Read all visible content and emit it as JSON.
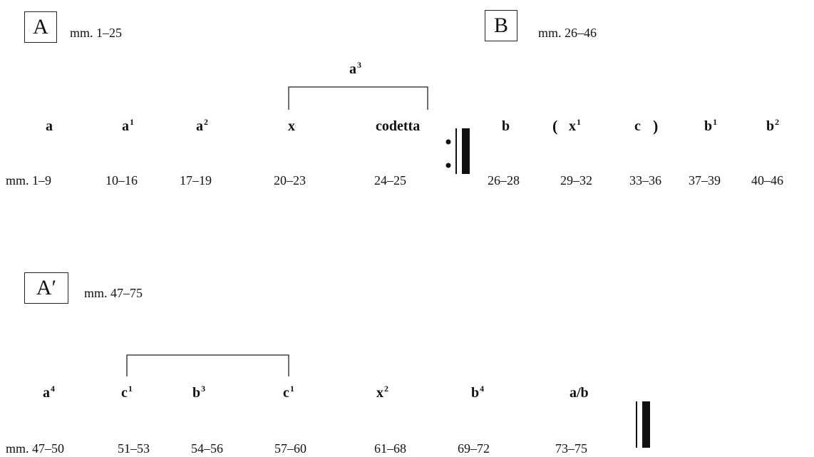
{
  "sectionA": {
    "letter": "A",
    "range": "mm. 1–25"
  },
  "sectionB": {
    "letter": "B",
    "range": "mm. 26–46"
  },
  "sectionA2": {
    "letter": "A′",
    "range": "mm. 47–75"
  },
  "row1": {
    "bracket_label": {
      "base": "a",
      "sup": "3"
    },
    "labels": [
      {
        "base": "a",
        "sup": ""
      },
      {
        "base": "a",
        "sup": "1"
      },
      {
        "base": "a",
        "sup": "2"
      },
      {
        "base": "x",
        "sup": ""
      },
      {
        "base": "codetta",
        "sup": ""
      },
      {
        "base": "b",
        "sup": ""
      },
      {
        "base": "x",
        "sup": "1"
      },
      {
        "base": "c",
        "sup": ""
      },
      {
        "base": "b",
        "sup": "1"
      },
      {
        "base": "b",
        "sup": "2"
      }
    ],
    "paren_open": "(",
    "paren_close": ")",
    "measures": [
      "mm. 1–9",
      "10–16",
      "17–19",
      "20–23",
      "24–25",
      "26–28",
      "29–32",
      "33–36",
      "37–39",
      "40–46"
    ]
  },
  "row2": {
    "labels": [
      {
        "base": "a",
        "sup": "4"
      },
      {
        "base": "c",
        "sup": "1"
      },
      {
        "base": "b",
        "sup": "3"
      },
      {
        "base": "c",
        "sup": "1"
      },
      {
        "base": "x",
        "sup": "2"
      },
      {
        "base": "b",
        "sup": "4"
      },
      {
        "base": "a/b",
        "sup": ""
      }
    ],
    "measures": [
      "mm. 47–50",
      "51–53",
      "54–56",
      "57–60",
      "61–68",
      "69–72",
      "73–75"
    ]
  }
}
